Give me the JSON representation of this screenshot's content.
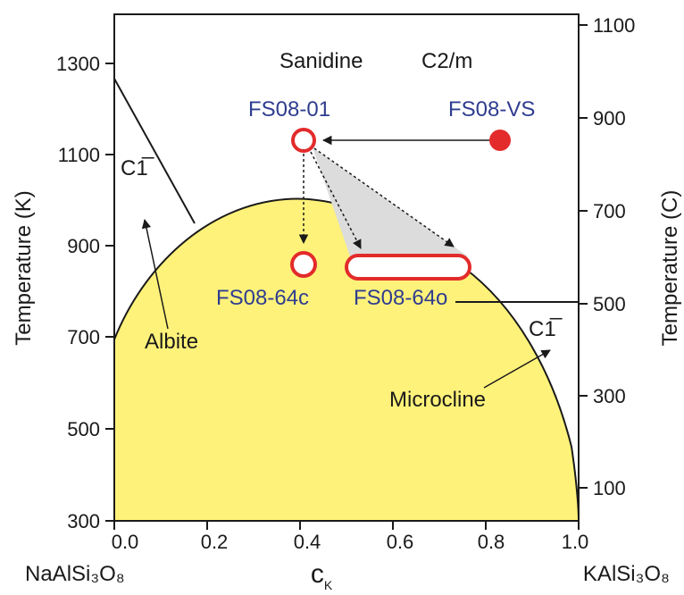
{
  "diagram": {
    "y_left_label": "Temperature (K)",
    "y_right_label": "Temperature (C)",
    "x_label_main": "c",
    "x_label_sub": "K",
    "x_end_left": "NaAlSi₃O₈",
    "x_end_right": "KAlSi₃O₈",
    "x_ticks": [
      "0.0",
      "0.2",
      "0.4",
      "0.6",
      "0.8",
      "1.0"
    ],
    "y_left_ticks": [
      "300",
      "500",
      "700",
      "900",
      "1100",
      "1300"
    ],
    "y_right_ticks": [
      "100",
      "300",
      "500",
      "700",
      "900",
      "1100"
    ],
    "regions": {
      "sanidine": "Sanidine",
      "c2m": "C2/m",
      "c1_left": "C1̅",
      "c1_right": "C1̅",
      "albite": "Albite",
      "microcline": "Microcline"
    },
    "samples": {
      "fs08_01": "FS08-01",
      "fs08_vs": "FS08-VS",
      "fs08_64c": "FS08-64c",
      "fs08_64o": "FS08-64o"
    },
    "colors": {
      "field_fill": "#fff27a",
      "sample_red": "#e32b2b",
      "sample_label": "#2f3d8f",
      "shade": "#dcdcdc",
      "axis": "#1a1a1a"
    }
  }
}
